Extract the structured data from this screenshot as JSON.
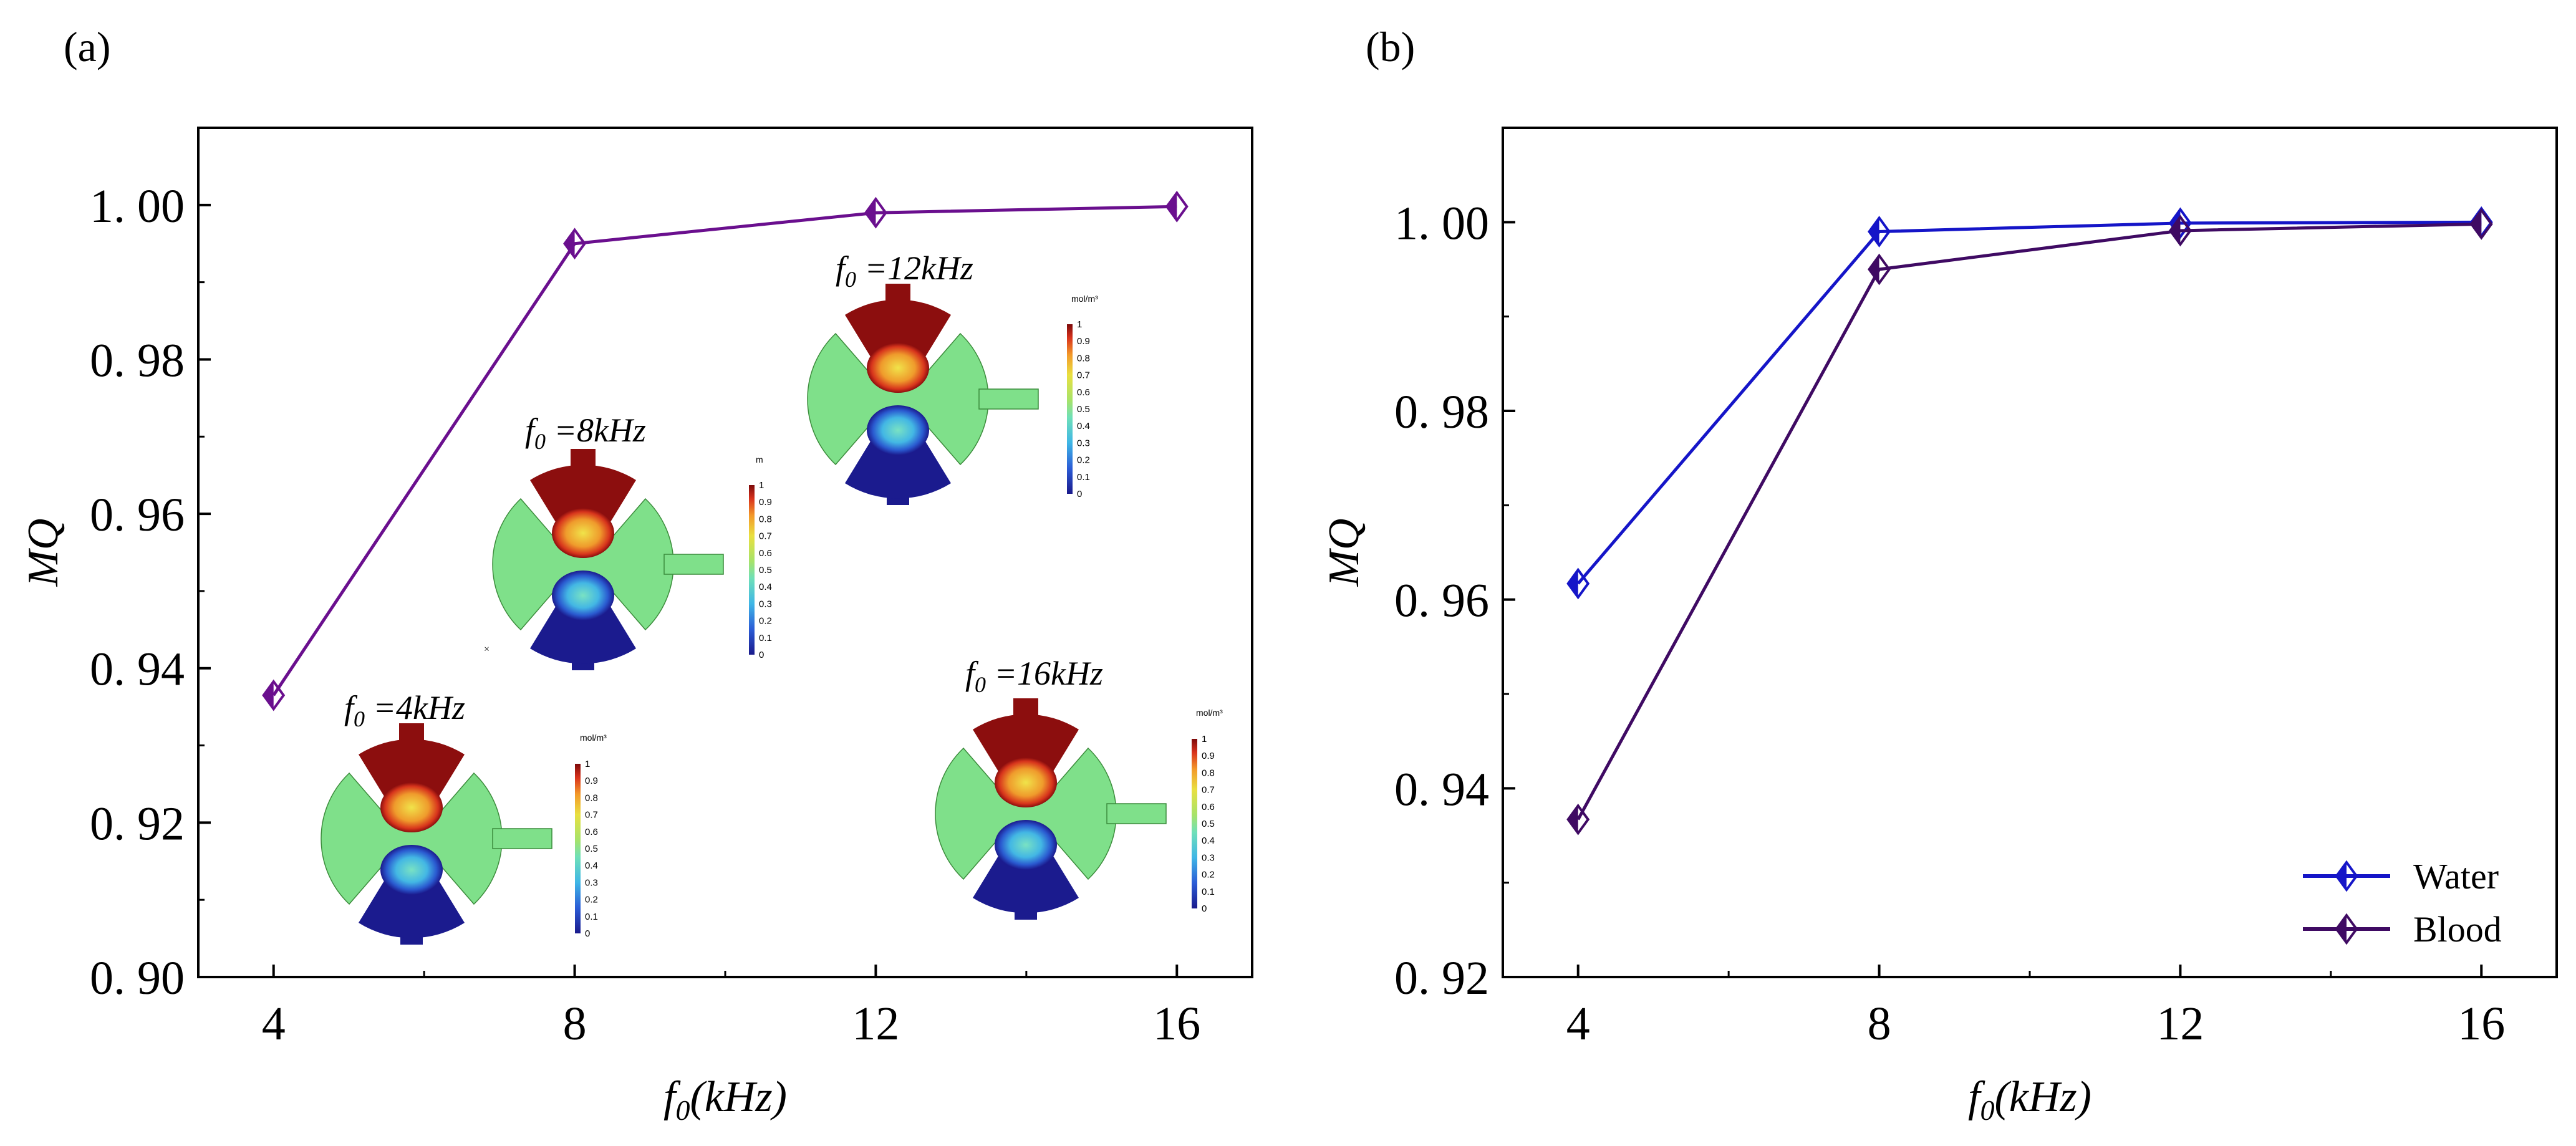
{
  "figure": {
    "panel_a_label": "(a)",
    "panel_b_label": "(b)"
  },
  "colors": {
    "purple": "#6a0f8e",
    "water": "#1515c8",
    "blood": "#3f0a63",
    "axis": "#000000"
  },
  "chart_data": [
    {
      "id": "a",
      "type": "line",
      "title": "",
      "xlabel_main": "f",
      "xlabel_sub": "0",
      "xlabel_rest": "(kHz)",
      "ylabel": "MQ",
      "xlim": [
        3,
        17
      ],
      "ylim": [
        0.9,
        1.01
      ],
      "xticks": [
        4,
        8,
        12,
        16
      ],
      "xtick_labels": [
        "4",
        "8",
        "12",
        "16"
      ],
      "yticks": [
        0.9,
        0.92,
        0.94,
        0.96,
        0.98,
        1.0
      ],
      "ytick_labels": [
        "0. 90",
        "0. 92",
        "0. 94",
        "0. 96",
        "0. 98",
        "1. 00"
      ],
      "series": [
        {
          "name": "MQ",
          "x": [
            4,
            8,
            12,
            16
          ],
          "values": [
            0.9365,
            0.995,
            0.999,
            0.9998
          ],
          "color": "#6a0f8e",
          "marker": "half-filled-diamond"
        }
      ],
      "insets": [
        {
          "title_f": "f",
          "title_sub": "0",
          "title_rest": " =4kHz",
          "unit": "mol/m³"
        },
        {
          "title_f": "f",
          "title_sub": "0",
          "title_rest": " =8kHz",
          "unit": "m"
        },
        {
          "title_f": "f",
          "title_sub": "0",
          "title_rest": " =12kHz",
          "unit": "mol/m³"
        },
        {
          "title_f": "f",
          "title_sub": "0",
          "title_rest": " =16kHz",
          "unit": "mol/m³"
        }
      ],
      "colorbar_ticks": [
        "1",
        "0.9",
        "0.8",
        "0.7",
        "0.6",
        "0.5",
        "0.4",
        "0.3",
        "0.2",
        "0.1",
        "0"
      ],
      "stray_mark": "×"
    },
    {
      "id": "b",
      "type": "line",
      "title": "",
      "xlabel_main": "f",
      "xlabel_sub": "0",
      "xlabel_rest": "(kHz)",
      "ylabel": "MQ",
      "xlim": [
        3,
        17
      ],
      "ylim": [
        0.92,
        1.01
      ],
      "xticks": [
        4,
        8,
        12,
        16
      ],
      "xtick_labels": [
        "4",
        "8",
        "12",
        "16"
      ],
      "yticks": [
        0.92,
        0.94,
        0.96,
        0.98,
        1.0
      ],
      "ytick_labels": [
        "0. 92",
        "0. 94",
        "0. 96",
        "0. 98",
        "1. 00"
      ],
      "legend_position": "bottom-right",
      "series": [
        {
          "name": "Water",
          "x": [
            4,
            8,
            12,
            16
          ],
          "values": [
            0.9617,
            0.999,
            0.9999,
            1.0
          ],
          "color": "#1515c8",
          "marker": "half-filled-diamond"
        },
        {
          "name": "Blood",
          "x": [
            4,
            8,
            12,
            16
          ],
          "values": [
            0.9367,
            0.995,
            0.9991,
            0.9998
          ],
          "color": "#3f0a63",
          "marker": "half-filled-diamond"
        }
      ]
    }
  ]
}
